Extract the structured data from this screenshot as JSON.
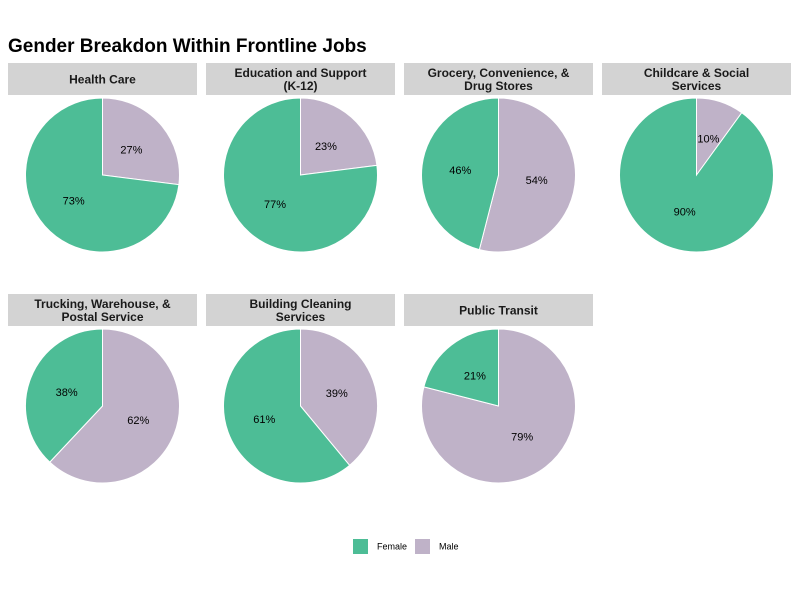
{
  "chart_data": {
    "type": "pie",
    "title": "Gender Breakdon Within Frontline Jobs",
    "legend": {
      "placement": "bottom",
      "entries": [
        "Female",
        "Male"
      ]
    },
    "colors": {
      "Female": "#4dbd96",
      "Male": "#bfb2c8",
      "strip": "#d3d3d3",
      "slice_border": "#ffffff"
    },
    "panels": [
      {
        "title_lines": [
          "Health Care"
        ],
        "slices": [
          {
            "name": "Female",
            "value": 73,
            "label": "73%"
          },
          {
            "name": "Male",
            "value": 27,
            "label": "27%"
          }
        ]
      },
      {
        "title_lines": [
          "Education and Support",
          "(K-12)"
        ],
        "slices": [
          {
            "name": "Female",
            "value": 77,
            "label": "77%"
          },
          {
            "name": "Male",
            "value": 23,
            "label": "23%"
          }
        ]
      },
      {
        "title_lines": [
          "Grocery, Convenience, &",
          "Drug Stores"
        ],
        "slices": [
          {
            "name": "Female",
            "value": 46,
            "label": "46%"
          },
          {
            "name": "Male",
            "value": 54,
            "label": "54%"
          }
        ]
      },
      {
        "title_lines": [
          "Childcare & Social",
          "Services"
        ],
        "slices": [
          {
            "name": "Female",
            "value": 90,
            "label": "90%"
          },
          {
            "name": "Male",
            "value": 10,
            "label": "10%"
          }
        ]
      },
      {
        "title_lines": [
          "Trucking, Warehouse, &",
          "Postal Service"
        ],
        "slices": [
          {
            "name": "Female",
            "value": 38,
            "label": "38%"
          },
          {
            "name": "Male",
            "value": 62,
            "label": "62%"
          }
        ]
      },
      {
        "title_lines": [
          "Building Cleaning",
          "Services"
        ],
        "slices": [
          {
            "name": "Female",
            "value": 61,
            "label": "61%"
          },
          {
            "name": "Male",
            "value": 39,
            "label": "39%"
          }
        ]
      },
      {
        "title_lines": [
          "Public Transit"
        ],
        "slices": [
          {
            "name": "Female",
            "value": 21,
            "label": "21%"
          },
          {
            "name": "Male",
            "value": 79,
            "label": "79%"
          }
        ]
      }
    ]
  }
}
